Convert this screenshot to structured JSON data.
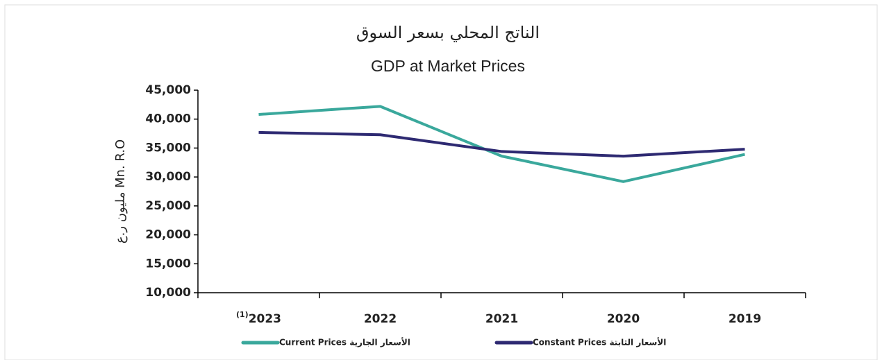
{
  "chart_data": {
    "type": "line",
    "title": "الناتج المحلي بسعر السوق",
    "subtitle": "GDP at Market Prices",
    "y_label": "مليون ر.ع Mn. R.O",
    "categories": [
      "2023",
      "2022",
      "2021",
      "2020",
      "2019"
    ],
    "category_superscripts": [
      "(1)",
      null,
      null,
      null,
      null
    ],
    "series": [
      {
        "name": "Current Prices الأسعار الجارية",
        "color": "#3aa89c",
        "values": [
          40800,
          42200,
          33600,
          29200,
          33900
        ]
      },
      {
        "name": "Constant Prices الأسعار الثابتة",
        "color": "#2e2a72",
        "values": [
          37700,
          37300,
          34400,
          33600,
          34800
        ]
      }
    ],
    "ylim": [
      10000,
      45000
    ],
    "yticks": [
      {
        "value": 10000,
        "label": "10,000"
      },
      {
        "value": 15000,
        "label": "15,000"
      },
      {
        "value": 20000,
        "label": "20,000"
      },
      {
        "value": 25000,
        "label": "25,000"
      },
      {
        "value": 30000,
        "label": "30,000"
      },
      {
        "value": 35000,
        "label": "35,000"
      },
      {
        "value": 40000,
        "label": "40,000"
      },
      {
        "value": 45000,
        "label": "45,000"
      }
    ],
    "grid": false,
    "legend": "bottom"
  }
}
